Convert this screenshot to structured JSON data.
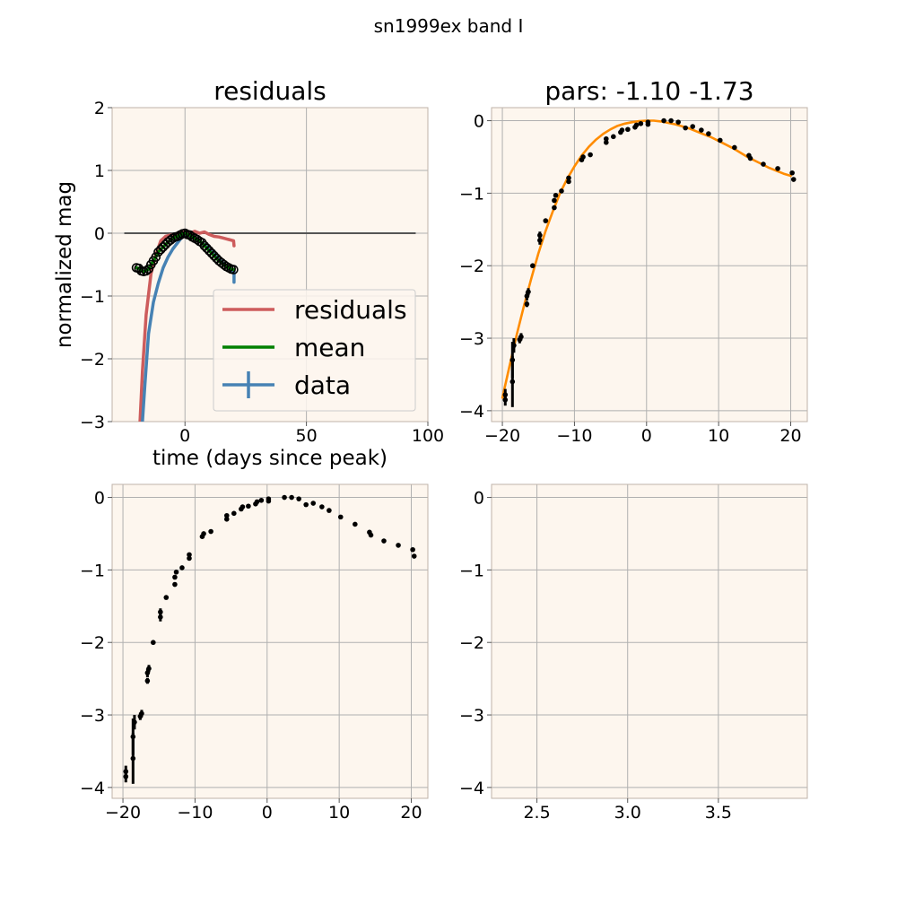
{
  "figure": {
    "suptitle": "sn1999ex band I",
    "panel_background": "#fdf6ee",
    "grid_color": "#b0b0b0",
    "spine_color": "#bfb3a8"
  },
  "chart_data": [
    {
      "id": "residuals",
      "type": "line",
      "title": "residuals",
      "xlabel": "time (days since peak)",
      "ylabel": "normalized mag",
      "xlim": [
        -30,
        100
      ],
      "ylim": [
        -3,
        2
      ],
      "xticks": [
        0,
        50,
        100
      ],
      "yticks": [
        -3,
        -2,
        -1,
        0,
        1,
        2
      ],
      "xtick_labels": [
        "0",
        "50",
        "100"
      ],
      "ytick_labels": [
        "−3",
        "−2",
        "−1",
        "0",
        "1",
        "2"
      ],
      "grid": true,
      "hline": {
        "y": 0,
        "x_range": [
          -25,
          95
        ],
        "color": "#555555"
      },
      "legend": {
        "placement": "lower-right",
        "entries": [
          {
            "label": "residuals",
            "color": "#cd5c5c",
            "kind": "line"
          },
          {
            "label": "mean",
            "color": "#008000",
            "kind": "line"
          },
          {
            "label": "data",
            "color": "#4682b4",
            "kind": "errorbar"
          }
        ]
      },
      "series": [
        {
          "name": "residuals",
          "color": "#cd5c5c",
          "x": [
            -18.5,
            -17.5,
            -16,
            -14,
            -12,
            -10,
            -8,
            -6,
            -4,
            -2,
            0,
            2,
            4,
            6,
            8,
            10,
            12,
            14,
            16,
            18,
            20,
            20.2
          ],
          "y": [
            -3.0,
            -2.2,
            -1.3,
            -0.65,
            -0.35,
            -0.12,
            -0.05,
            -0.03,
            -0.02,
            0.0,
            0.02,
            0.0,
            0.03,
            0.0,
            0.02,
            -0.02,
            -0.05,
            -0.06,
            -0.08,
            -0.1,
            -0.12,
            -0.2
          ]
        },
        {
          "name": "mean",
          "color": "#008000",
          "x": [
            -20,
            -19,
            -18,
            -17,
            -16,
            -15,
            -14,
            -13,
            -12,
            -11,
            -10,
            -9,
            -8,
            -7,
            -6,
            -5,
            -4,
            -3,
            -2,
            -1,
            0,
            1,
            2,
            3,
            4,
            5,
            6,
            7,
            8,
            9,
            10,
            11,
            12,
            13,
            14,
            15,
            16,
            17,
            18,
            19,
            20
          ],
          "y": [
            -0.55,
            -0.56,
            -0.6,
            -0.61,
            -0.6,
            -0.57,
            -0.5,
            -0.44,
            -0.38,
            -0.3,
            -0.26,
            -0.22,
            -0.18,
            -0.14,
            -0.11,
            -0.08,
            -0.06,
            -0.05,
            -0.03,
            -0.01,
            0.0,
            -0.02,
            -0.03,
            -0.06,
            -0.08,
            -0.1,
            -0.13,
            -0.15,
            -0.2,
            -0.24,
            -0.28,
            -0.32,
            -0.36,
            -0.4,
            -0.44,
            -0.47,
            -0.5,
            -0.53,
            -0.55,
            -0.57,
            -0.58
          ]
        },
        {
          "name": "data",
          "color": "#4682b4",
          "x": [
            -17.5,
            -16.5,
            -15,
            -13,
            -11,
            -9,
            -7,
            -5,
            -3,
            -1,
            0,
            1,
            3,
            5,
            7,
            9,
            11,
            13,
            15,
            17,
            19,
            20.2,
            20.2
          ],
          "y": [
            -3.0,
            -2.4,
            -1.6,
            -1.1,
            -0.8,
            -0.55,
            -0.38,
            -0.25,
            -0.15,
            -0.05,
            0.0,
            -0.02,
            -0.05,
            -0.1,
            -0.15,
            -0.22,
            -0.3,
            -0.38,
            -0.45,
            -0.52,
            -0.6,
            -0.6,
            -0.78
          ]
        },
        {
          "name": "",
          "color": "#000000",
          "kind": "circles",
          "x": [
            -20,
            -19,
            -18,
            -17,
            -16,
            -15,
            -14,
            -13,
            -12,
            -11,
            -10,
            -9,
            -8,
            -7,
            -6,
            -5,
            -4,
            -3,
            -2,
            -1,
            0,
            1,
            2,
            3,
            4,
            5,
            6,
            7,
            8,
            9,
            10,
            11,
            12,
            13,
            14,
            15,
            16,
            17,
            18,
            19,
            20
          ],
          "y": [
            -0.55,
            -0.56,
            -0.6,
            -0.61,
            -0.6,
            -0.57,
            -0.5,
            -0.44,
            -0.38,
            -0.3,
            -0.26,
            -0.22,
            -0.18,
            -0.14,
            -0.11,
            -0.08,
            -0.06,
            -0.05,
            -0.03,
            -0.01,
            0.0,
            -0.02,
            -0.03,
            -0.06,
            -0.08,
            -0.1,
            -0.13,
            -0.15,
            -0.2,
            -0.24,
            -0.28,
            -0.32,
            -0.36,
            -0.4,
            -0.44,
            -0.47,
            -0.5,
            -0.53,
            -0.55,
            -0.57,
            -0.58
          ]
        }
      ]
    },
    {
      "id": "fit",
      "type": "scatter",
      "title": "pars: -1.10 -1.73",
      "xlabel": "",
      "ylabel": "",
      "xlim": [
        -21.5,
        22.3
      ],
      "ylim": [
        -4.15,
        0.18
      ],
      "xticks": [
        -20,
        -10,
        0,
        10,
        20
      ],
      "yticks": [
        -4,
        -3,
        -2,
        -1,
        0
      ],
      "xtick_labels": [
        "−20",
        "−10",
        "0",
        "10",
        "20"
      ],
      "ytick_labels": [
        "−4",
        "−3",
        "−2",
        "−1",
        "0"
      ],
      "grid": true,
      "fit_curve": {
        "color": "#ff8c00",
        "x": [
          -20,
          -19,
          -18,
          -17,
          -16,
          -15,
          -14,
          -13,
          -12,
          -11,
          -10,
          -9,
          -8,
          -7,
          -6,
          -5,
          -4,
          -3,
          -2,
          -1,
          0,
          1,
          2,
          3,
          4,
          5,
          6,
          7,
          8,
          9,
          10,
          11,
          12,
          13,
          14,
          15,
          16,
          17,
          18,
          19,
          20
        ],
        "y": [
          -3.82,
          -3.38,
          -2.95,
          -2.55,
          -2.18,
          -1.83,
          -1.52,
          -1.25,
          -1.0,
          -0.8,
          -0.63,
          -0.48,
          -0.36,
          -0.26,
          -0.18,
          -0.12,
          -0.07,
          -0.04,
          -0.02,
          -0.005,
          0.0,
          0.0,
          -0.01,
          -0.03,
          -0.05,
          -0.08,
          -0.11,
          -0.15,
          -0.19,
          -0.23,
          -0.28,
          -0.33,
          -0.38,
          -0.44,
          -0.5,
          -0.55,
          -0.6,
          -0.65,
          -0.69,
          -0.73,
          -0.76
        ]
      }
    },
    {
      "id": "data_time",
      "type": "scatter",
      "title": "",
      "xlabel": "",
      "ylabel": "",
      "xlim": [
        -21.5,
        22.3
      ],
      "ylim": [
        -4.15,
        0.18
      ],
      "xticks": [
        -20,
        -10,
        0,
        10,
        20
      ],
      "yticks": [
        -4,
        -3,
        -2,
        -1,
        0
      ],
      "xtick_labels": [
        "−20",
        "−10",
        "0",
        "10",
        "20"
      ],
      "ytick_labels": [
        "−4",
        "−3",
        "−2",
        "−1",
        "0"
      ],
      "grid": true
    },
    {
      "id": "data_log",
      "type": "scatter",
      "title": "",
      "xlabel": "",
      "ylabel": "",
      "xlim": [
        2.25,
        3.99
      ],
      "ylim": [
        -4.15,
        0.18
      ],
      "xticks": [
        2.5,
        3.0,
        3.5
      ],
      "yticks": [
        -4,
        -3,
        -2,
        -1,
        0
      ],
      "xtick_labels": [
        "2.5",
        "3.0",
        "3.5"
      ],
      "ytick_labels": [
        "−4",
        "−3",
        "−2",
        "−1",
        "0"
      ],
      "grid": true
    }
  ],
  "observations": {
    "t": [
      -19.6,
      -19.6,
      -18.6,
      -18.6,
      -18.4,
      -17.6,
      -17.4,
      -16.6,
      -16.6,
      -16.4,
      -15.8,
      -14.8,
      -14.8,
      -14.0,
      -12.8,
      -12.8,
      -12.6,
      -11.8,
      -10.8,
      -10.8,
      -9.0,
      -8.8,
      -7.8,
      -5.6,
      -5.6,
      -4.6,
      -3.6,
      -3.4,
      -2.6,
      -1.6,
      -1.4,
      -0.8,
      0.2,
      0.2,
      2.4,
      3.4,
      4.4,
      5.4,
      6.4,
      7.6,
      8.6,
      10.2,
      12.2,
      14.2,
      14.4,
      16.2,
      18.2,
      20.2,
      20.4
    ],
    "mag": [
      -3.85,
      -3.78,
      -3.6,
      -3.3,
      -3.1,
      -3.02,
      -2.98,
      -2.53,
      -2.42,
      -2.36,
      -2.0,
      -1.65,
      -1.58,
      -1.38,
      -1.2,
      -1.1,
      -1.03,
      -0.97,
      -0.84,
      -0.79,
      -0.54,
      -0.5,
      -0.47,
      -0.3,
      -0.25,
      -0.22,
      -0.16,
      -0.13,
      -0.12,
      -0.09,
      -0.06,
      -0.04,
      -0.02,
      -0.05,
      0.0,
      0.0,
      -0.02,
      -0.1,
      -0.08,
      -0.13,
      -0.18,
      -0.27,
      -0.37,
      -0.48,
      -0.52,
      -0.6,
      -0.66,
      -0.72,
      -0.81
    ],
    "err": [
      0.08,
      0.08,
      0.35,
      0.25,
      0.1,
      0.05,
      0.05,
      0.04,
      0.06,
      0.05,
      0.02,
      0.06,
      0.05,
      0.02,
      0.03,
      0.03,
      0.02,
      0.02,
      0.03,
      0.03,
      0.02,
      0.02,
      0.02,
      0.02,
      0.02,
      0.02,
      0.02,
      0.02,
      0.02,
      0.02,
      0.02,
      0.02,
      0.02,
      0.02,
      0.02,
      0.02,
      0.02,
      0.02,
      0.02,
      0.02,
      0.02,
      0.02,
      0.02,
      0.02,
      0.02,
      0.02,
      0.02,
      0.02,
      0.02
    ],
    "log_time_offset_days": 30
  }
}
